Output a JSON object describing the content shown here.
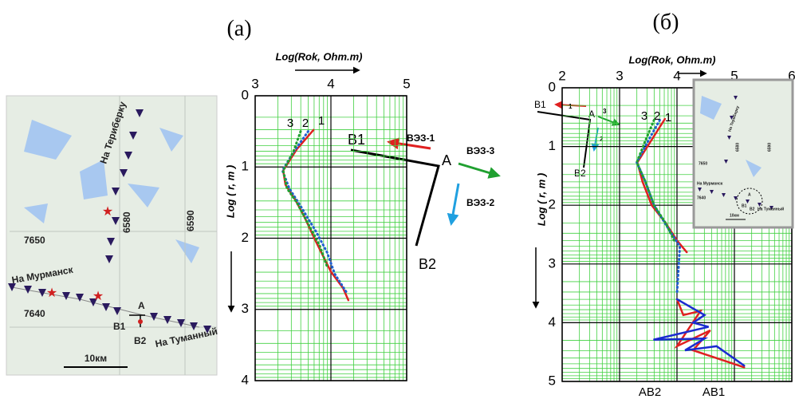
{
  "panel_labels": [
    "(а)",
    "(б)"
  ],
  "map": {
    "north": "На Териберку",
    "grid_6580": "6580",
    "grid_6590": "6590",
    "grid_7650": "7650",
    "west": "На Мурманск",
    "grid_7640": "7640",
    "A": "A",
    "B1": "B1",
    "B2": "B2",
    "east": "На Туманный",
    "scale": "10км"
  },
  "diagram_a": {
    "B1": "B1",
    "A": "A",
    "B2": "B2",
    "vez1": "ВЭЗ-1",
    "vez3": "ВЭЗ-3",
    "vez2": "ВЭЗ-2"
  },
  "diagram_b": {
    "B1": "B1",
    "A": "A",
    "B2": "B2",
    "r1": "1",
    "r3": "3",
    "r2": "2"
  },
  "chart_data": [
    {
      "type": "line",
      "x_label": "Log(Rok, Ohm.m)",
      "y_label": "Log ( r, m )",
      "xlim": [
        3,
        5
      ],
      "xticks": [
        3,
        4,
        5
      ],
      "ylim": [
        0,
        4
      ],
      "yticks": [
        0,
        1,
        2,
        3,
        4
      ],
      "grid": true,
      "y_inverted": true,
      "series": [
        {
          "name": "1",
          "color": "#e02020",
          "line_style": "solid",
          "x": [
            3.77,
            3.55,
            3.37,
            3.4,
            3.53,
            3.65,
            3.79,
            3.92,
            4.0,
            4.16,
            4.23
          ],
          "values": [
            0.48,
            0.75,
            1.05,
            1.25,
            1.46,
            1.7,
            2.02,
            2.3,
            2.47,
            2.7,
            2.87
          ]
        },
        {
          "name": "2",
          "color": "#2060d0",
          "line_style": "dotted",
          "x": [
            3.7,
            3.5,
            3.36,
            3.45,
            3.6,
            3.8,
            3.95,
            4.05,
            4.2
          ],
          "values": [
            0.5,
            0.8,
            1.05,
            1.3,
            1.55,
            1.9,
            2.2,
            2.5,
            2.75
          ]
        },
        {
          "name": "3",
          "color": "#20a030",
          "line_style": "dotted",
          "x": [
            3.6,
            3.5,
            3.37,
            3.42,
            3.55,
            3.7,
            3.85,
            3.95
          ],
          "values": [
            0.5,
            0.8,
            1.05,
            1.3,
            1.5,
            1.8,
            2.1,
            2.4
          ]
        }
      ]
    },
    {
      "type": "line",
      "x_label": "Log(Rok, Ohm.m)",
      "y_label": "Log ( r, m )",
      "xlim": [
        2,
        6
      ],
      "xticks": [
        2,
        3,
        4,
        5,
        6
      ],
      "ylim": [
        0,
        5
      ],
      "yticks": [
        0,
        1,
        2,
        3,
        4,
        5
      ],
      "grid": true,
      "y_inverted": true,
      "series": [
        {
          "name": "1",
          "color": "#e02020",
          "line_style": "solid",
          "x": [
            3.79,
            3.55,
            3.31,
            3.4,
            3.56,
            3.8,
            4.0,
            4.17
          ],
          "values": [
            0.53,
            0.9,
            1.27,
            1.6,
            2.0,
            2.3,
            2.6,
            2.8
          ]
        },
        {
          "name": "2",
          "color": "#2060d0",
          "line_style": "dotted",
          "x": [
            3.7,
            3.5,
            3.3,
            3.45,
            3.6,
            3.85,
            4.05,
            4.0
          ],
          "values": [
            0.55,
            0.9,
            1.27,
            1.6,
            2.0,
            2.4,
            2.7,
            3.5
          ]
        },
        {
          "name": "3",
          "color": "#20a030",
          "line_style": "dotted",
          "x": [
            3.6,
            3.45,
            3.3,
            3.45,
            3.6,
            3.8,
            3.95
          ],
          "values": [
            0.55,
            0.9,
            1.27,
            1.6,
            2.0,
            2.3,
            2.6
          ]
        },
        {
          "name": "AB1",
          "color": "#e02020",
          "line_style": "solid",
          "x": [
            4.0,
            4.11,
            4.41,
            4.0,
            4.58,
            4.28,
            5.17
          ],
          "values": [
            3.6,
            3.87,
            3.8,
            4.4,
            4.13,
            4.47,
            4.76
          ]
        },
        {
          "name": "AB2",
          "color": "#1a2bd0",
          "line_style": "solid",
          "x": [
            4.0,
            4.48,
            4.28,
            4.55,
            3.59,
            4.48,
            4.14,
            4.69,
            5.17
          ],
          "values": [
            3.6,
            3.87,
            4.0,
            4.07,
            4.29,
            4.27,
            4.47,
            4.4,
            4.73
          ]
        }
      ]
    }
  ]
}
